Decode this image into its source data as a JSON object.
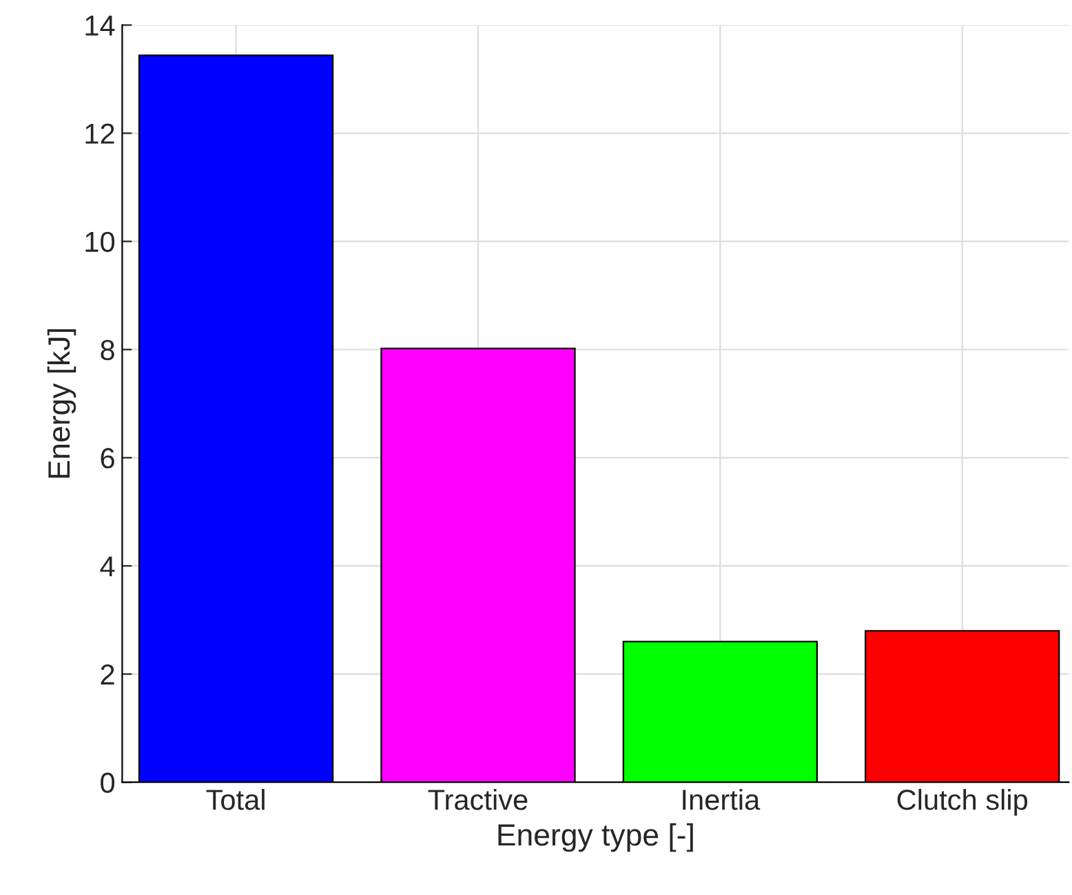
{
  "chart_data": {
    "type": "bar",
    "xlabel": "Energy type [-]",
    "ylabel": "Energy [kJ]",
    "categories": [
      "Total",
      "Tractive",
      "Inertia",
      "Clutch slip"
    ],
    "values": [
      13.44,
      8.02,
      2.6,
      2.8
    ],
    "colors": [
      "#0000ff",
      "#ff00ff",
      "#00ff00",
      "#ff0000"
    ],
    "ylim": [
      0,
      14
    ],
    "yticks": [
      0,
      2,
      4,
      6,
      8,
      10,
      12,
      14
    ],
    "grid": true
  }
}
